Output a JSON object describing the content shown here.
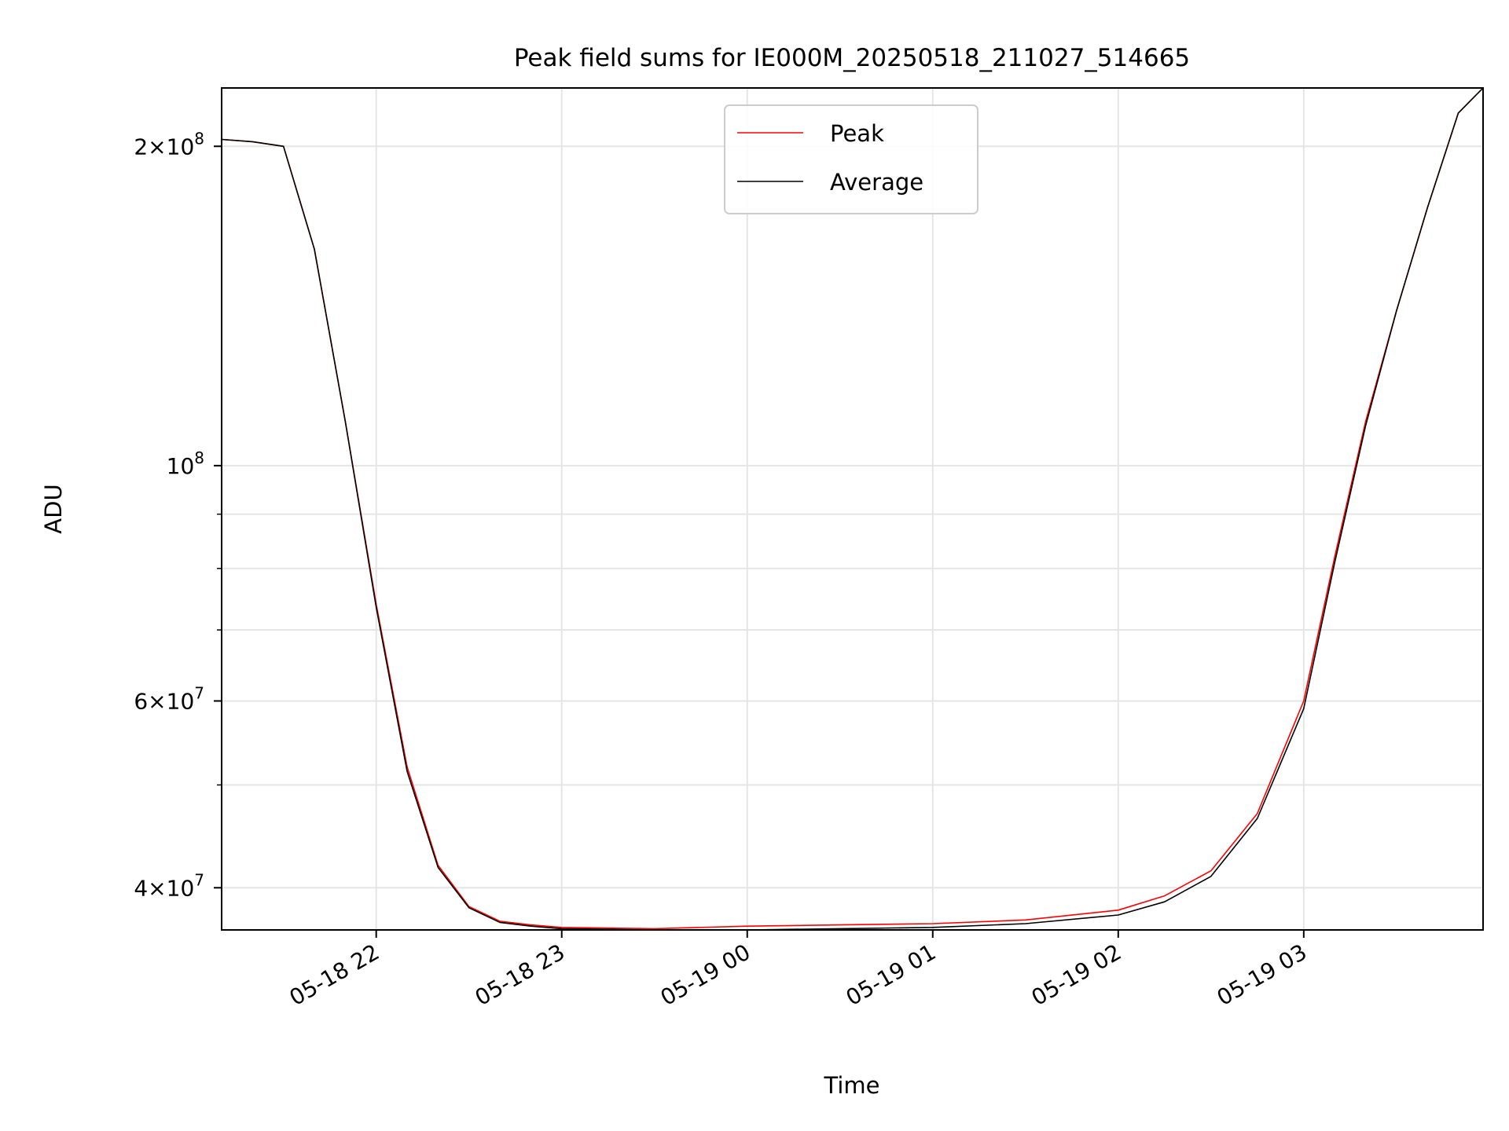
{
  "chart_data": {
    "type": "line",
    "title": "Peak field sums for IE000M_20250518_211027_514665",
    "xlabel": "Time",
    "ylabel": "ADU",
    "yscale": "log",
    "ylim": [
      36500000,
      227000000
    ],
    "xlim": [
      "2025-05-18 21:10",
      "2025-05-19 03:58"
    ],
    "grid": true,
    "legend_position": "top-center",
    "x_ticks": [
      {
        "t": "2025-05-18 22:00",
        "label": "05-18 22"
      },
      {
        "t": "2025-05-18 23:00",
        "label": "05-18 23"
      },
      {
        "t": "2025-05-19 00:00",
        "label": "05-19 00"
      },
      {
        "t": "2025-05-19 01:00",
        "label": "05-19 01"
      },
      {
        "t": "2025-05-19 02:00",
        "label": "05-19 02"
      },
      {
        "t": "2025-05-19 03:00",
        "label": "05-19 03"
      }
    ],
    "y_ticks": [
      {
        "value": 40000000,
        "mantissa": "4",
        "exp": "7"
      },
      {
        "value": 60000000,
        "mantissa": "6",
        "exp": "7"
      },
      {
        "value": 100000000,
        "mantissa": "",
        "exp": "8"
      },
      {
        "value": 200000000,
        "mantissa": "2",
        "exp": "8"
      }
    ],
    "y_minor_ticks": [
      50000000,
      70000000,
      80000000,
      90000000
    ],
    "series": [
      {
        "name": "Peak",
        "color": "#ff0000",
        "x": [
          "2025-05-18 21:10",
          "2025-05-18 21:20",
          "2025-05-18 21:30",
          "2025-05-18 21:40",
          "2025-05-18 21:50",
          "2025-05-18 22:00",
          "2025-05-18 22:10",
          "2025-05-18 22:20",
          "2025-05-18 22:30",
          "2025-05-18 22:40",
          "2025-05-18 22:50",
          "2025-05-18 23:00",
          "2025-05-18 23:30",
          "2025-05-19 00:00",
          "2025-05-19 00:30",
          "2025-05-19 01:00",
          "2025-05-19 01:30",
          "2025-05-19 02:00",
          "2025-05-19 02:15",
          "2025-05-19 02:30",
          "2025-05-19 02:45",
          "2025-05-19 03:00",
          "2025-05-19 03:10",
          "2025-05-19 03:20",
          "2025-05-19 03:30",
          "2025-05-19 03:40",
          "2025-05-19 03:50",
          "2025-05-19 03:58"
        ],
        "values": [
          203000000,
          202000000,
          200000000,
          160000000,
          110000000,
          74000000,
          52000000,
          42000000,
          38400000,
          37200000,
          36900000,
          36700000,
          36600000,
          36800000,
          36900000,
          37000000,
          37300000,
          38100000,
          39300000,
          41500000,
          47000000,
          60000000,
          82000000,
          110000000,
          140000000,
          175000000,
          215000000,
          227000000
        ]
      },
      {
        "name": "Average",
        "color": "#000000",
        "x": [
          "2025-05-18 21:10",
          "2025-05-18 21:20",
          "2025-05-18 21:30",
          "2025-05-18 21:40",
          "2025-05-18 21:50",
          "2025-05-18 22:00",
          "2025-05-18 22:10",
          "2025-05-18 22:20",
          "2025-05-18 22:30",
          "2025-05-18 22:40",
          "2025-05-18 22:50",
          "2025-05-18 23:00",
          "2025-05-18 23:30",
          "2025-05-19 00:00",
          "2025-05-19 00:30",
          "2025-05-19 01:00",
          "2025-05-19 01:30",
          "2025-05-19 02:00",
          "2025-05-19 02:15",
          "2025-05-19 02:30",
          "2025-05-19 02:45",
          "2025-05-19 03:00",
          "2025-05-19 03:10",
          "2025-05-19 03:20",
          "2025-05-19 03:30",
          "2025-05-19 03:40",
          "2025-05-19 03:50",
          "2025-05-19 03:58"
        ],
        "values": [
          203000000,
          202000000,
          200000000,
          160000000,
          110000000,
          73500000,
          51500000,
          41800000,
          38300000,
          37100000,
          36800000,
          36600000,
          36500000,
          36500000,
          36600000,
          36700000,
          37000000,
          37700000,
          38800000,
          41000000,
          46500000,
          59000000,
          81000000,
          109000000,
          140000000,
          175000000,
          215000000,
          227000000
        ]
      }
    ]
  }
}
